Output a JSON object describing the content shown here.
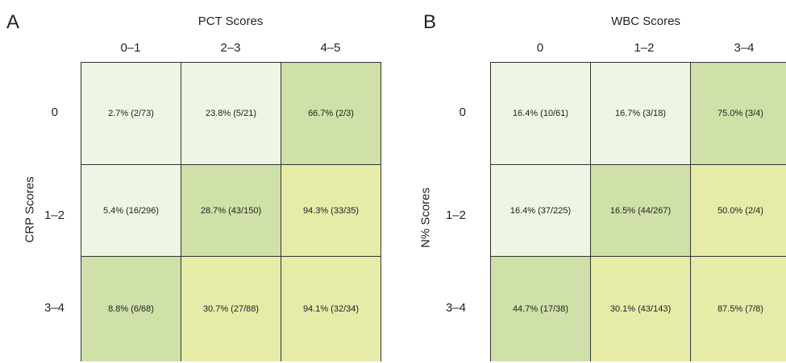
{
  "chart_data": [
    {
      "type": "heatmap",
      "panel_label": "A",
      "title": "PCT Scores",
      "ylabel": "CRP Scores",
      "columns": [
        "0–1",
        "2–3",
        "4–5"
      ],
      "rows": [
        "0",
        "1–2",
        "3–4"
      ],
      "cells": [
        [
          "2.7% (2/73)",
          "23.8% (5/21)",
          "66.7% (2/3)"
        ],
        [
          "5.4% (16/296)",
          "28.7% (43/150)",
          "94.3% (33/35)"
        ],
        [
          "8.8% (6/68)",
          "30.7% (27/88)",
          "94.1% (32/34)"
        ]
      ],
      "values": [
        [
          2.7,
          23.8,
          66.7
        ],
        [
          5.4,
          28.7,
          94.3
        ],
        [
          8.8,
          30.7,
          94.1
        ]
      ],
      "colors": [
        [
          "#eef5e4",
          "#eef5e4",
          "#cfe0a8"
        ],
        [
          "#eef5e4",
          "#cfe0a8",
          "#e6eba8"
        ],
        [
          "#cfe0a8",
          "#e6eba8",
          "#e6eba8"
        ]
      ]
    },
    {
      "type": "heatmap",
      "panel_label": "B",
      "title": "WBC Scores",
      "ylabel": "N% Scores",
      "columns": [
        "0",
        "1–2",
        "3–4"
      ],
      "rows": [
        "0",
        "1–2",
        "3–4"
      ],
      "cells": [
        [
          "16.4% (10/61)",
          "16.7% (3/18)",
          "75.0% (3/4)"
        ],
        [
          "16.4% (37/225)",
          "16.5% (44/267)",
          "50.0% (2/4)"
        ],
        [
          "44.7% (17/38)",
          "30.1% (43/143)",
          "87.5% (7/8)"
        ]
      ],
      "values": [
        [
          16.4,
          16.7,
          75.0
        ],
        [
          16.4,
          16.5,
          50.0
        ],
        [
          44.7,
          30.1,
          87.5
        ]
      ],
      "colors": [
        [
          "#eef5e4",
          "#eef5e4",
          "#cfe0a8"
        ],
        [
          "#eef5e4",
          "#cfe0a8",
          "#e6eba8"
        ],
        [
          "#cfe0a8",
          "#e6eba8",
          "#e6eba8"
        ]
      ]
    }
  ]
}
